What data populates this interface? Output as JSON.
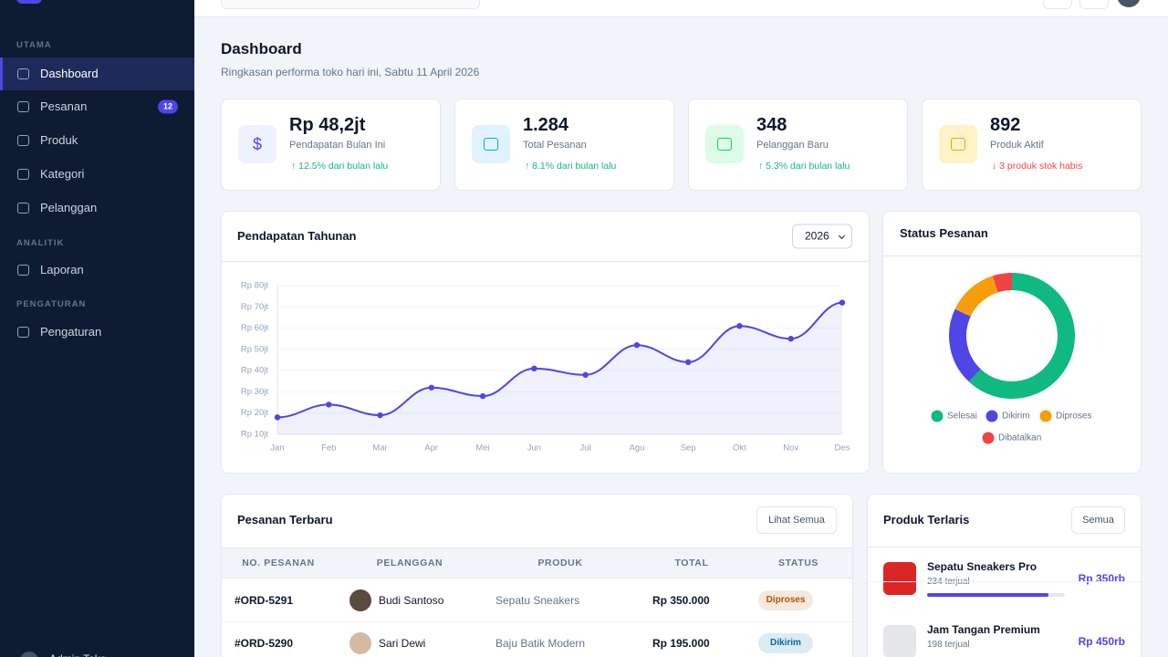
{
  "sidebar": {
    "sections": [
      {
        "label": "UTAMA",
        "items": [
          {
            "label": "Dashboard",
            "active": true
          },
          {
            "label": "Pesanan",
            "badge": 12
          },
          {
            "label": "Produk"
          },
          {
            "label": "Kategori"
          },
          {
            "label": "Pelanggan"
          }
        ]
      },
      {
        "label": "ANALITIK",
        "items": [
          {
            "label": "Laporan"
          }
        ]
      },
      {
        "label": "PENGATURAN",
        "items": [
          {
            "label": "Pengaturan"
          }
        ]
      }
    ],
    "user": "Admin Toko"
  },
  "header": {
    "title": "Dashboard",
    "subtitle": "Ringkasan performa toko hari ini, Sabtu 11 April 2026"
  },
  "stats": [
    {
      "icon": "$",
      "value": "Rp 48,2jt",
      "label": "Pendapatan Bulan Ini",
      "change": "↑ 12.5% dari bulan lalu",
      "color": "#10b981"
    },
    {
      "value": "1.284",
      "label": "Total Pesanan",
      "change": "↑ 8.1% dari bulan lalu",
      "color": "#10b981"
    },
    {
      "value": "348",
      "label": "Pelanggan Baru",
      "change": "↑ 5.3% dari bulan lalu",
      "color": "#10b981"
    },
    {
      "value": "892",
      "label": "Produk Aktif",
      "change": "↓ 3 produk stok habis",
      "color": "#ef4444"
    }
  ],
  "revenue_chart": {
    "type": "line",
    "title": "Pendapatan Tahunan",
    "select": "2026",
    "categories": [
      "Jan",
      "Feb",
      "Mar",
      "Apr",
      "Mei",
      "Jun",
      "Jul",
      "Agu",
      "Sep",
      "Okt",
      "Nov",
      "Des"
    ],
    "values": [
      18,
      24,
      19,
      32,
      28,
      41,
      38,
      52,
      44,
      61,
      55,
      72
    ],
    "color": "#4f46e5",
    "ylim": [
      10,
      80
    ],
    "yticks": [
      {
        "value": 10,
        "label": "Rp 10jt"
      },
      {
        "value": 20,
        "label": "Rp 20jt"
      },
      {
        "value": 30,
        "label": "Rp 30jt"
      },
      {
        "value": 40,
        "label": "Rp 40jt"
      },
      {
        "value": 50,
        "label": "Rp 50jt"
      },
      {
        "value": 60,
        "label": "Rp 60jt"
      },
      {
        "value": 70,
        "label": "Rp 70jt"
      },
      {
        "value": 80,
        "label": "Rp 80jt"
      }
    ],
    "grid": true
  },
  "status_chart": {
    "type": "donut",
    "title": "Status Pesanan",
    "series": [
      {
        "name": "Selesai",
        "color": "#10b981",
        "value": 62
      },
      {
        "name": "Dikirim",
        "color": "#4f46e5",
        "value": 20
      },
      {
        "name": "Diproses",
        "color": "#f59e0b",
        "value": 13
      },
      {
        "name": "Dibatalkan",
        "color": "#ef4444",
        "value": 5
      }
    ]
  },
  "orders": {
    "title": "Pesanan Terbaru",
    "button": "Lihat Semua",
    "columns": [
      "NO. PESANAN",
      "PELANGGAN",
      "PRODUK",
      "TOTAL",
      "STATUS"
    ],
    "rows": [
      [
        "#ORD-5291",
        "Budi Santoso",
        "Sepatu Sneakers",
        "Rp 350.000",
        "Diproses"
      ],
      [
        "#ORD-5290",
        "Sari Dewi",
        "Baju Batik Modern",
        "Rp 195.000",
        "Dikirim"
      ]
    ],
    "status_colors": [
      "#b45309",
      "#0369a1"
    ]
  },
  "products": {
    "title": "Produk Terlaris",
    "button": "Semua",
    "items": [
      {
        "name": "Sepatu Sneakers Pro",
        "sold": "234 terjual",
        "price": "Rp 350rb",
        "progress": 88
      },
      {
        "name": "Jam Tangan Premium",
        "sold": "198 terjual",
        "price": "Rp 450rb"
      }
    ]
  }
}
